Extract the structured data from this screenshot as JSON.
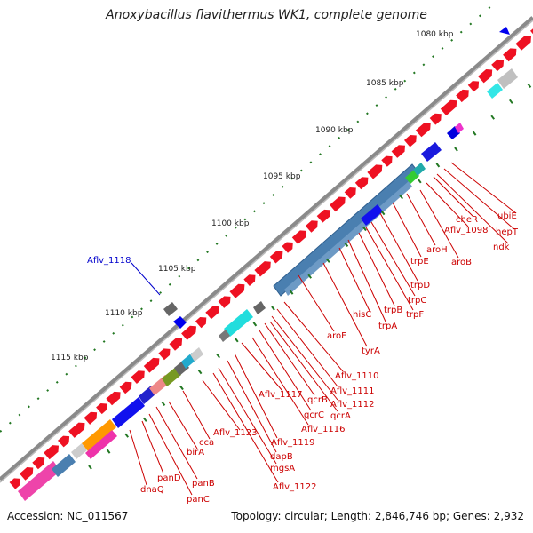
{
  "title": "Anoxybacillus flavithermus WK1, complete genome",
  "accession": "Accession: NC_011567",
  "summary": "Topology: circular; Length: 2,846,746 bp; Genes: 2,932",
  "ruler": [
    "1080 kbp",
    "1085 kbp",
    "1090 kbp",
    "1095 kbp",
    "1100 kbp",
    "1105 kbp",
    "1110 kbp",
    "1115 kbp"
  ],
  "highlight_label": "Aflv_1118",
  "gene_labels": [
    "ubiE",
    "hepT",
    "ndk",
    "cheR",
    "Aflv_1098",
    "aroB",
    "aroH",
    "trpE",
    "trpD",
    "trpC",
    "trpB",
    "trpF",
    "hisC",
    "trpA",
    "aroE",
    "tyrA",
    "Aflv_1110",
    "Aflv_1111",
    "Aflv_1112",
    "Aflv_1117",
    "qcrB",
    "qcrC",
    "qcrA",
    "Aflv_1116",
    "Aflv_1123",
    "Aflv_1119",
    "dapB",
    "mgsA",
    "cca",
    "birA",
    "Aflv_1122",
    "panD",
    "panB",
    "dnaQ",
    "panC"
  ],
  "colors": {
    "label_red": "#cc0000",
    "highlight_blue": "#0000cc",
    "backbone": "#888888",
    "gene_red": "#ee1122",
    "tick_green": "#227722",
    "steel_blue": "#4a7fb0"
  }
}
